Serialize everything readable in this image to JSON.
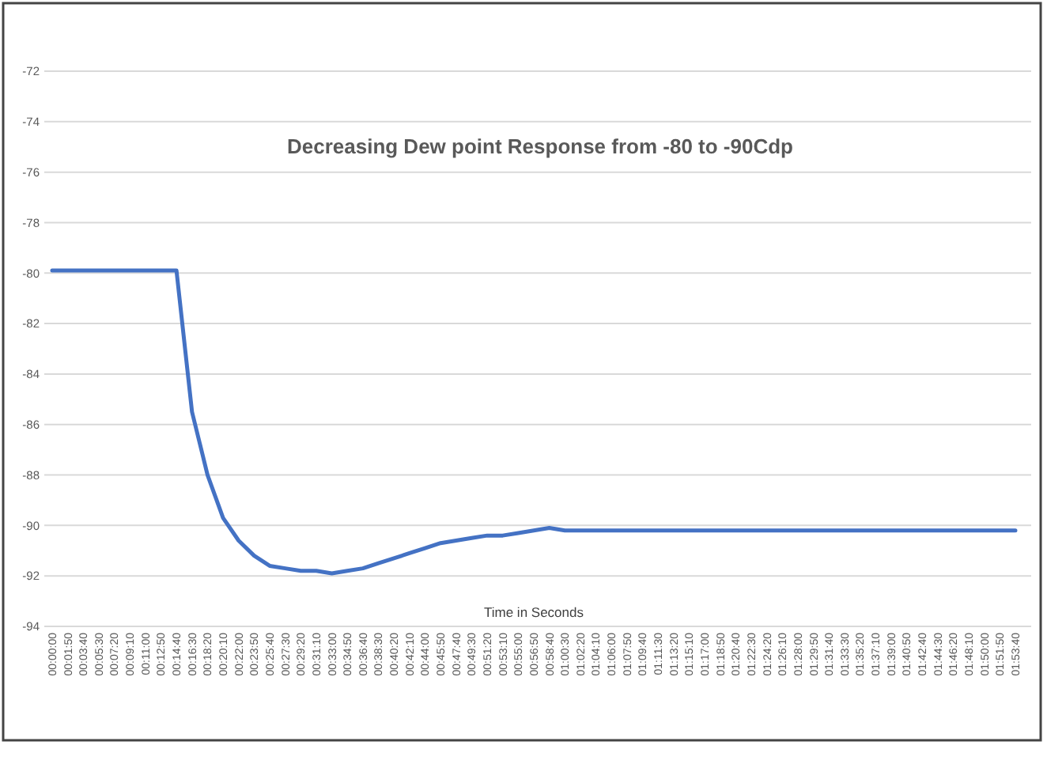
{
  "chart_data": {
    "type": "line",
    "title": "Decreasing Dew point Response from -80 to -90Cdp",
    "xlabel": "Time in Seconds",
    "categories": [
      "00:00:00",
      "00:01:50",
      "00:03:40",
      "00:05:30",
      "00:07:20",
      "00:09:10",
      "00:11:00",
      "00:12:50",
      "00:14:40",
      "00:16:30",
      "00:18:20",
      "00:20:10",
      "00:22:00",
      "00:23:50",
      "00:25:40",
      "00:27:30",
      "00:29:20",
      "00:31:10",
      "00:33:00",
      "00:34:50",
      "00:36:40",
      "00:38:30",
      "00:40:20",
      "00:42:10",
      "00:44:00",
      "00:45:50",
      "00:47:40",
      "00:49:30",
      "00:51:20",
      "00:53:10",
      "00:55:00",
      "00:56:50",
      "00:58:40",
      "01:00:30",
      "01:02:20",
      "01:04:10",
      "01:06:00",
      "01:07:50",
      "01:09:40",
      "01:11:30",
      "01:13:20",
      "01:15:10",
      "01:17:00",
      "01:18:50",
      "01:20:40",
      "01:22:30",
      "01:24:20",
      "01:26:10",
      "01:28:00",
      "01:29:50",
      "01:31:40",
      "01:33:30",
      "01:35:20",
      "01:37:10",
      "01:39:00",
      "01:40:50",
      "01:42:40",
      "01:44:30",
      "01:46:20",
      "01:48:10",
      "01:50:00",
      "01:51:50",
      "01:53:40"
    ],
    "series": [
      {
        "color": "#4472c4",
        "values": [
          -79.9,
          -79.9,
          -79.9,
          -79.9,
          -79.9,
          -79.9,
          -79.9,
          -79.9,
          -79.9,
          -85.5,
          -88.0,
          -89.7,
          -90.6,
          -91.2,
          -91.6,
          -91.7,
          -91.8,
          -91.8,
          -91.9,
          -91.8,
          -91.7,
          -91.5,
          -91.3,
          -91.1,
          -90.9,
          -90.7,
          -90.6,
          -90.5,
          -90.4,
          -90.4,
          -90.3,
          -90.2,
          -90.1,
          -90.2,
          -90.2,
          -90.2,
          -90.2,
          -90.2,
          -90.2,
          -90.2,
          -90.2,
          -90.2,
          -90.2,
          -90.2,
          -90.2,
          -90.2,
          -90.2,
          -90.2,
          -90.2,
          -90.2,
          -90.2,
          -90.2,
          -90.2,
          -90.2,
          -90.2,
          -90.2,
          -90.2,
          -90.2,
          -90.2,
          -90.2,
          -90.2,
          -90.2,
          -90.2
        ]
      }
    ],
    "ylim": [
      -94,
      -72
    ],
    "yticks": [
      -94,
      -92,
      -90,
      -88,
      -86,
      -84,
      -82,
      -80,
      -78,
      -76,
      -74,
      -72
    ],
    "grid": "y",
    "marker": "none",
    "line_style": "solid"
  }
}
